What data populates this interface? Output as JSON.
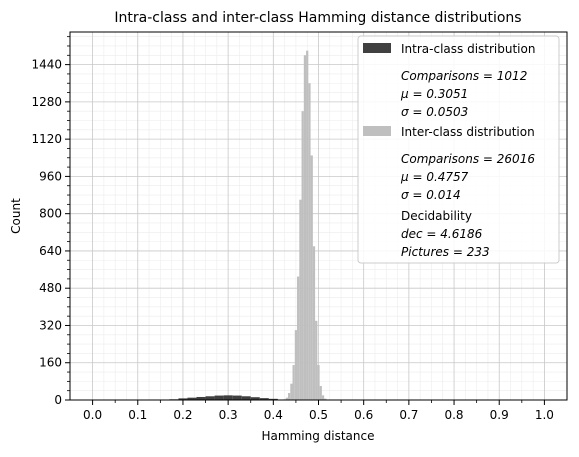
{
  "chart_data": {
    "type": "bar",
    "title": "Intra-class and inter-class Hamming distance distributions",
    "xlabel": "Hamming distance",
    "ylabel": "Count",
    "xlim": [
      -0.05,
      1.05
    ],
    "ylim": [
      0,
      1580
    ],
    "xticks": [
      0.0,
      0.1,
      0.2,
      0.3,
      0.4,
      0.5,
      0.6,
      0.7,
      0.8,
      0.9,
      1.0
    ],
    "xtick_labels": [
      "0.0",
      "0.1",
      "0.2",
      "0.3",
      "0.4",
      "0.5",
      "0.6",
      "0.7",
      "0.8",
      "0.9",
      "1.0"
    ],
    "yticks": [
      0,
      160,
      320,
      480,
      640,
      800,
      960,
      1120,
      1280,
      1440
    ],
    "ytick_labels": [
      "0",
      "160",
      "320",
      "480",
      "640",
      "800",
      "960",
      "1120",
      "1280",
      "1440"
    ],
    "grid": true,
    "legend_position": "top-right",
    "series": [
      {
        "name": "Intra-class distribution",
        "color": "#404040",
        "x": [
          0.18,
          0.2,
          0.22,
          0.24,
          0.26,
          0.28,
          0.3,
          0.32,
          0.34,
          0.36,
          0.38,
          0.4,
          0.42
        ],
        "values": [
          3,
          7,
          10,
          13,
          16,
          19,
          20,
          19,
          16,
          12,
          8,
          5,
          2
        ]
      },
      {
        "name": "Inter-class distribution",
        "color": "#bfbfbf",
        "x": [
          0.425,
          0.43,
          0.435,
          0.44,
          0.445,
          0.45,
          0.455,
          0.46,
          0.465,
          0.47,
          0.475,
          0.48,
          0.485,
          0.49,
          0.495,
          0.5,
          0.505,
          0.51,
          0.515,
          0.52
        ],
        "values": [
          3,
          10,
          30,
          70,
          150,
          300,
          530,
          860,
          1240,
          1480,
          1500,
          1360,
          1050,
          660,
          340,
          150,
          60,
          20,
          6,
          2
        ]
      }
    ],
    "legend": {
      "intra_label": "Intra-class distribution",
      "intra_stats": [
        "Comparisons = 1012",
        "μ = 0.3051",
        "σ = 0.0503"
      ],
      "inter_label": "Inter-class distribution",
      "inter_stats": [
        "Comparisons = 26016",
        "μ = 0.4757",
        "σ = 0.014"
      ],
      "decidability_label": "Decidability",
      "extra_stats": [
        "dec = 4.6186",
        "Pictures = 233"
      ]
    }
  }
}
